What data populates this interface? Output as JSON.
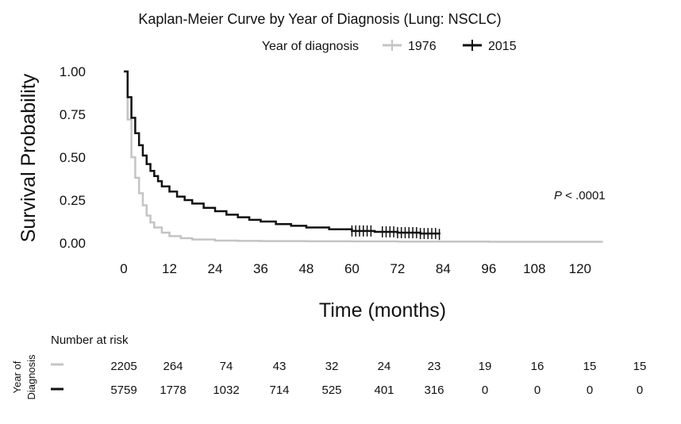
{
  "chart_data": {
    "type": "line",
    "title": "Kaplan-Meier Curve by Year of Diagnosis (Lung: NSCLC)",
    "xlabel": "Time (months)",
    "ylabel": "Survival Probability",
    "xlim": [
      0,
      126
    ],
    "ylim": [
      0,
      1.0
    ],
    "xticks": [
      "0",
      "12",
      "24",
      "36",
      "48",
      "60",
      "72",
      "84",
      "96",
      "108",
      "120"
    ],
    "xtick_values": [
      0,
      12,
      24,
      36,
      48,
      60,
      72,
      84,
      96,
      108,
      120
    ],
    "yticks": [
      "0.00",
      "0.25",
      "0.50",
      "0.75",
      "1.00"
    ],
    "ytick_values": [
      0,
      0.25,
      0.5,
      0.75,
      1.0
    ],
    "grid": false,
    "legend": {
      "title": "Year of diagnosis",
      "position": "top",
      "entries": [
        "1976",
        "2015"
      ]
    },
    "annotation": {
      "p_label": "P",
      "p_text": " < .0001"
    },
    "series": [
      {
        "name": "1976",
        "color": "#c4c4c4",
        "x": [
          0,
          1,
          2,
          3,
          4,
          5,
          6,
          7,
          8,
          10,
          12,
          15,
          18,
          24,
          30,
          36,
          48,
          60,
          72,
          84,
          96,
          108,
          120,
          126
        ],
        "y": [
          1.0,
          0.72,
          0.5,
          0.38,
          0.29,
          0.22,
          0.16,
          0.12,
          0.09,
          0.06,
          0.04,
          0.028,
          0.02,
          0.014,
          0.012,
          0.011,
          0.01,
          0.009,
          0.008,
          0.008,
          0.007,
          0.007,
          0.007,
          0.007
        ],
        "censor_x": []
      },
      {
        "name": "2015",
        "color": "#111111",
        "x": [
          0,
          1,
          2,
          3,
          4,
          5,
          6,
          7,
          8,
          9,
          10,
          12,
          14,
          16,
          18,
          21,
          24,
          27,
          30,
          33,
          36,
          40,
          44,
          48,
          54,
          60,
          66,
          72,
          78,
          83
        ],
        "y": [
          1.0,
          0.85,
          0.73,
          0.64,
          0.57,
          0.51,
          0.46,
          0.42,
          0.39,
          0.36,
          0.33,
          0.3,
          0.27,
          0.25,
          0.23,
          0.205,
          0.185,
          0.165,
          0.15,
          0.135,
          0.125,
          0.11,
          0.1,
          0.09,
          0.08,
          0.07,
          0.065,
          0.06,
          0.055,
          0.05
        ],
        "censor_x": [
          60,
          61,
          62,
          63,
          64,
          65,
          68,
          69,
          70,
          71,
          72,
          73,
          74,
          75,
          76,
          77,
          78,
          79,
          80,
          81,
          82,
          83
        ]
      }
    ],
    "risk_table": {
      "heading": "Number at risk",
      "side_label_lines": [
        "Year of",
        "Diagnosis"
      ],
      "rows": [
        {
          "name": "1976",
          "color": "#c4c4c4",
          "values": [
            "2205",
            "264",
            "74",
            "43",
            "32",
            "24",
            "23",
            "19",
            "16",
            "15",
            "15"
          ]
        },
        {
          "name": "2015",
          "color": "#111111",
          "values": [
            "5759",
            "1778",
            "1032",
            "714",
            "525",
            "401",
            "316",
            "0",
            "0",
            "0",
            "0"
          ]
        }
      ]
    }
  }
}
